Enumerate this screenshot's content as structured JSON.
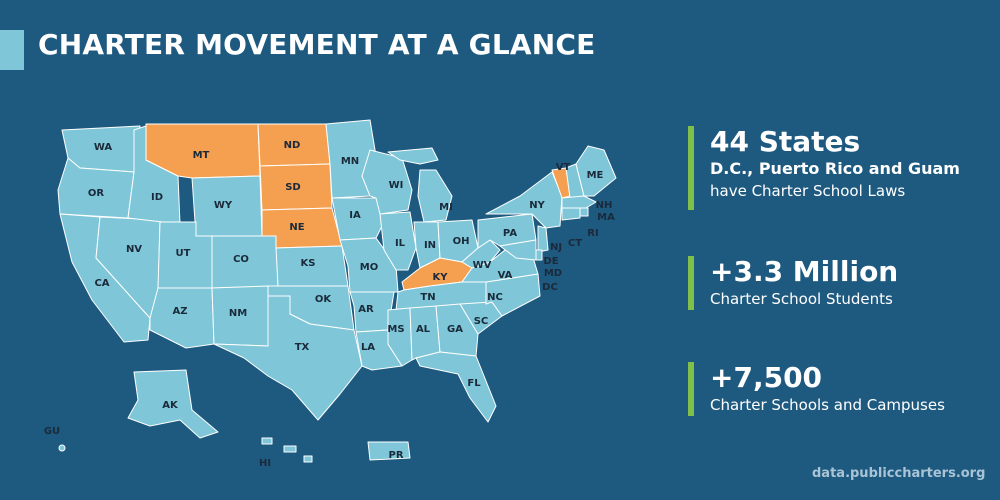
{
  "title": "CHARTER MOVEMENT AT A GLANCE",
  "colors": {
    "background": "#1e5a80",
    "no_law": "#7ec6d8",
    "has_law": "#f5a050",
    "accent": "#7fbf4a"
  },
  "states": {
    "WA": "WA",
    "OR": "OR",
    "CA": "CA",
    "NV": "NV",
    "ID": "ID",
    "MT": "MT",
    "WY": "WY",
    "UT": "UT",
    "AZ": "AZ",
    "CO": "CO",
    "NM": "NM",
    "ND": "ND",
    "SD": "SD",
    "NE": "NE",
    "KS": "KS",
    "OK": "OK",
    "TX": "TX",
    "MN": "MN",
    "IA": "IA",
    "MO": "MO",
    "AR": "AR",
    "LA": "LA",
    "WI": "WI",
    "IL": "IL",
    "MI": "MI",
    "IN": "IN",
    "OH": "OH",
    "KY": "KY",
    "TN": "TN",
    "MS": "MS",
    "AL": "AL",
    "GA": "GA",
    "FL": "FL",
    "SC": "SC",
    "NC": "NC",
    "VA": "VA",
    "WV": "WV",
    "PA": "PA",
    "NY": "NY",
    "VT": "VT",
    "NH": "NH",
    "ME": "ME",
    "MA": "MA",
    "RI": "RI",
    "CT": "CT",
    "NJ": "NJ",
    "DE": "DE",
    "MD": "MD",
    "DC": "DC",
    "AK": "AK",
    "HI": "HI",
    "PR": "PR",
    "GU": "GU"
  },
  "states_without_charter_law": [
    "MT",
    "ND",
    "SD",
    "NE",
    "KY",
    "VT"
  ],
  "stats": [
    {
      "headline": "44 States",
      "subhead": "D.C., Puerto Rico and Guam",
      "description": "have Charter School Laws"
    },
    {
      "headline": "+3.3 Million",
      "description": "Charter School Students"
    },
    {
      "headline": "+7,500",
      "description": "Charter Schools and Campuses"
    }
  ],
  "source": "data.publiccharters.org"
}
